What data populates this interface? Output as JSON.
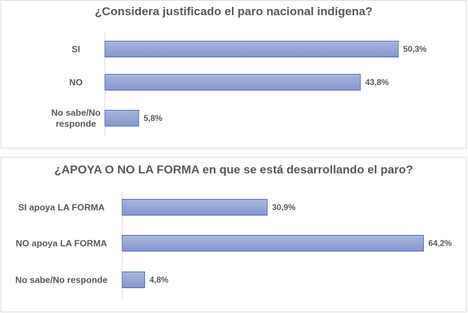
{
  "colors": {
    "bar_fill_top": "#a9b7de",
    "bar_fill_bottom": "#8496cf",
    "bar_stroke": "#4f6bb3",
    "axis": "#d9d9d9",
    "text": "#595959"
  },
  "chart_data": [
    {
      "type": "bar",
      "orientation": "horizontal",
      "title": "¿Considera justificado el paro nacional indígena?",
      "categories": [
        [
          "SI"
        ],
        [
          "NO"
        ],
        [
          "No sabe/No",
          "responde"
        ]
      ],
      "values": [
        50.3,
        43.8,
        5.8
      ],
      "value_labels": [
        "50,3%",
        "43,8%",
        "5,8%"
      ],
      "unit": "%",
      "grid": false,
      "legend": "none"
    },
    {
      "type": "bar",
      "orientation": "horizontal",
      "title": "¿APOYA O NO LA FORMA en que se está desarrollando el paro?",
      "categories": [
        [
          "SI apoya LA FORMA"
        ],
        [
          "NO apoya LA FORMA"
        ],
        [
          "No sabe/No responde"
        ]
      ],
      "values": [
        30.9,
        64.2,
        4.8
      ],
      "value_labels": [
        "30,9%",
        "64,2%",
        "4,8%"
      ],
      "unit": "%",
      "grid": false,
      "legend": "none"
    }
  ]
}
